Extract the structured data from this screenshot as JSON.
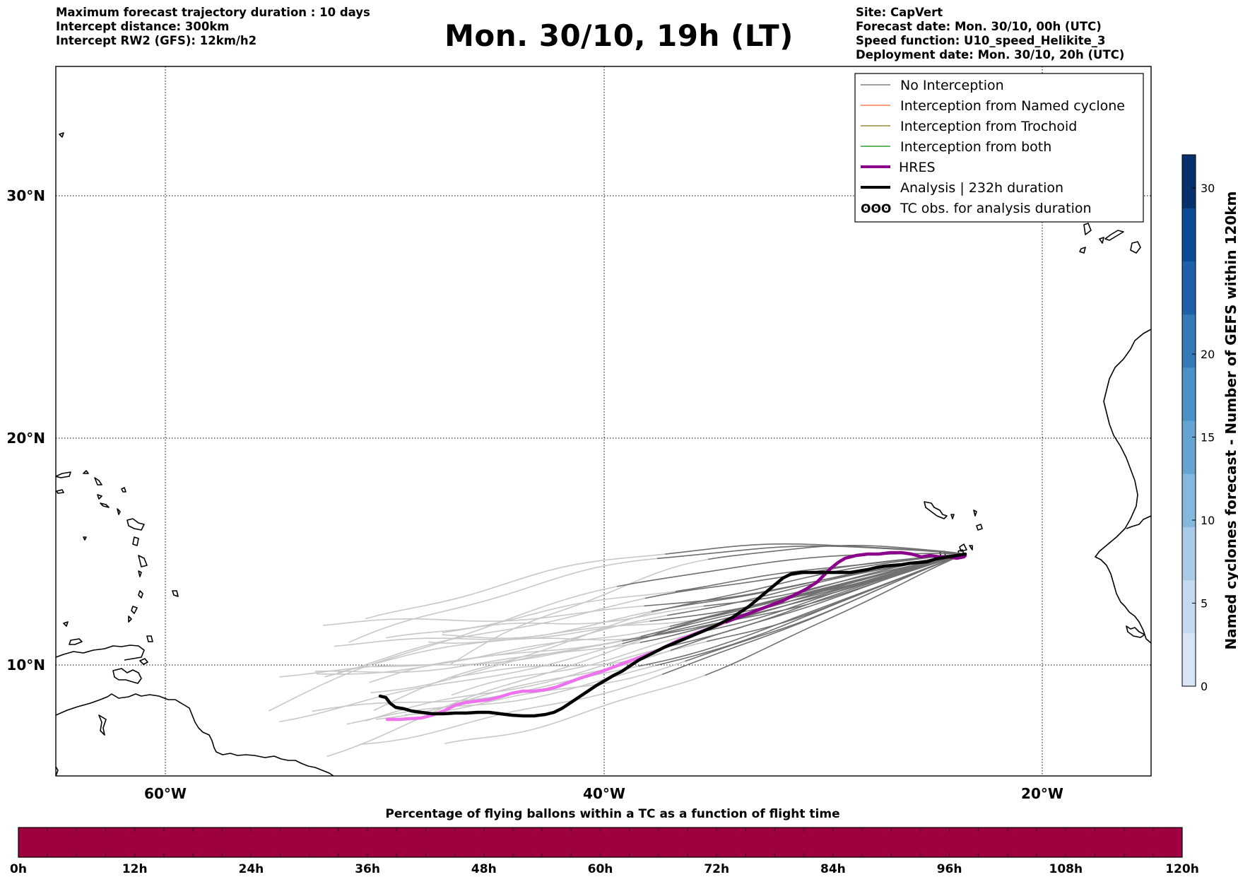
{
  "header": {
    "left_lines": [
      "Maximum forecast trajectory duration : 10 days",
      "Intercept distance: 300km",
      "Intercept RW2 (GFS):  12km/h2"
    ],
    "title": "Mon. 30/10, 19h (LT)",
    "right_lines": [
      "Site: CapVert",
      "Forecast date: Mon. 30/10, 00h (UTC)",
      "Speed function: U10_speed_Helikite_3",
      "Deployment date: Mon. 30/10, 20h (UTC)"
    ]
  },
  "map": {
    "lat_labels": [
      "30°N",
      "20°N",
      "10°N"
    ],
    "lon_labels": [
      "60°W",
      "40°W",
      "20°W"
    ],
    "grid": true
  },
  "legend": {
    "items": [
      {
        "label": "No Interception",
        "color": "#808080",
        "style": "thin"
      },
      {
        "label": "Interception from Named cyclone",
        "color": "#ff7f50",
        "style": "thin"
      },
      {
        "label": "Interception from Trochoid",
        "color": "#9a8a3a",
        "style": "thin"
      },
      {
        "label": "Interception from both",
        "color": "#2ca02c",
        "style": "thin"
      },
      {
        "label": "HRES",
        "color": "#8b008b",
        "style": "thick"
      },
      {
        "label": "Analysis | 232h duration",
        "color": "#000000",
        "style": "thick"
      },
      {
        "label": "TC obs. for analysis duration",
        "color": "#000000",
        "style": "symbol"
      }
    ],
    "symbol_glyphs": "ʘʘʘ"
  },
  "colorbar_right": {
    "label": "Named cyclones forecast - Number of GEFS within 120km",
    "ticks": [
      "0",
      "5",
      "10",
      "15",
      "20",
      "30"
    ],
    "colors": [
      "#d7e5f4",
      "#c3d9ee",
      "#a9cbe6",
      "#86b8dd",
      "#65a4d1",
      "#4a91c5",
      "#3479b8",
      "#1f61a8",
      "#0e4a93",
      "#08306b"
    ]
  },
  "colorbar_bottom": {
    "title": "Percentage of flying ballons within a TC as a function of flight time",
    "ticks": [
      "0h",
      "12h",
      "24h",
      "36h",
      "48h",
      "60h",
      "72h",
      "84h",
      "96h",
      "108h",
      "120h"
    ],
    "fill_color": "#9e0040"
  }
}
